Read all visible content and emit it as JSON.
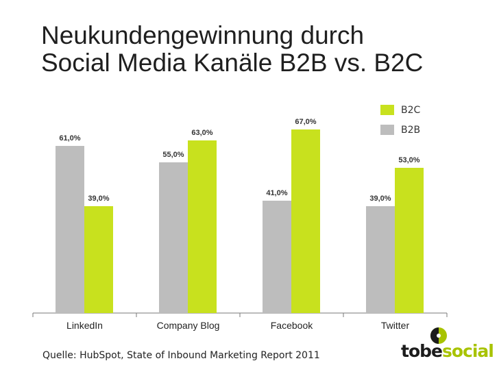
{
  "title": {
    "line1": "Neukundengewinnung durch",
    "line2": "Social Media Kanäle B2B vs. B2C"
  },
  "colors": {
    "b2b": "#bdbdbd",
    "b2c": "#c8e11e",
    "axis": "#777777",
    "text": "#1f1f1f"
  },
  "chart_data": {
    "type": "bar",
    "categories": [
      "LinkedIn",
      "Company Blog",
      "Facebook",
      "Twitter"
    ],
    "series": [
      {
        "name": "B2B",
        "values": [
          61,
          55,
          41,
          39
        ],
        "labels": [
          "61,0%",
          "55,0%",
          "41,0%",
          "39,0%"
        ]
      },
      {
        "name": "B2C",
        "values": [
          39,
          63,
          67,
          53
        ],
        "labels": [
          "39,0%",
          "63,0%",
          "67,0%",
          "53,0%"
        ]
      }
    ],
    "ylim": [
      0,
      100
    ],
    "legend_position": "top-right",
    "grid": false
  },
  "legend": [
    {
      "label": "B2C",
      "color": "#c8e11e"
    },
    {
      "label": "B2B",
      "color": "#bdbdbd"
    }
  ],
  "source": "Quelle: HubSpot, State of Inbound Marketing  Report 2011",
  "logo": {
    "part1": "tobe",
    "part2": "social"
  }
}
